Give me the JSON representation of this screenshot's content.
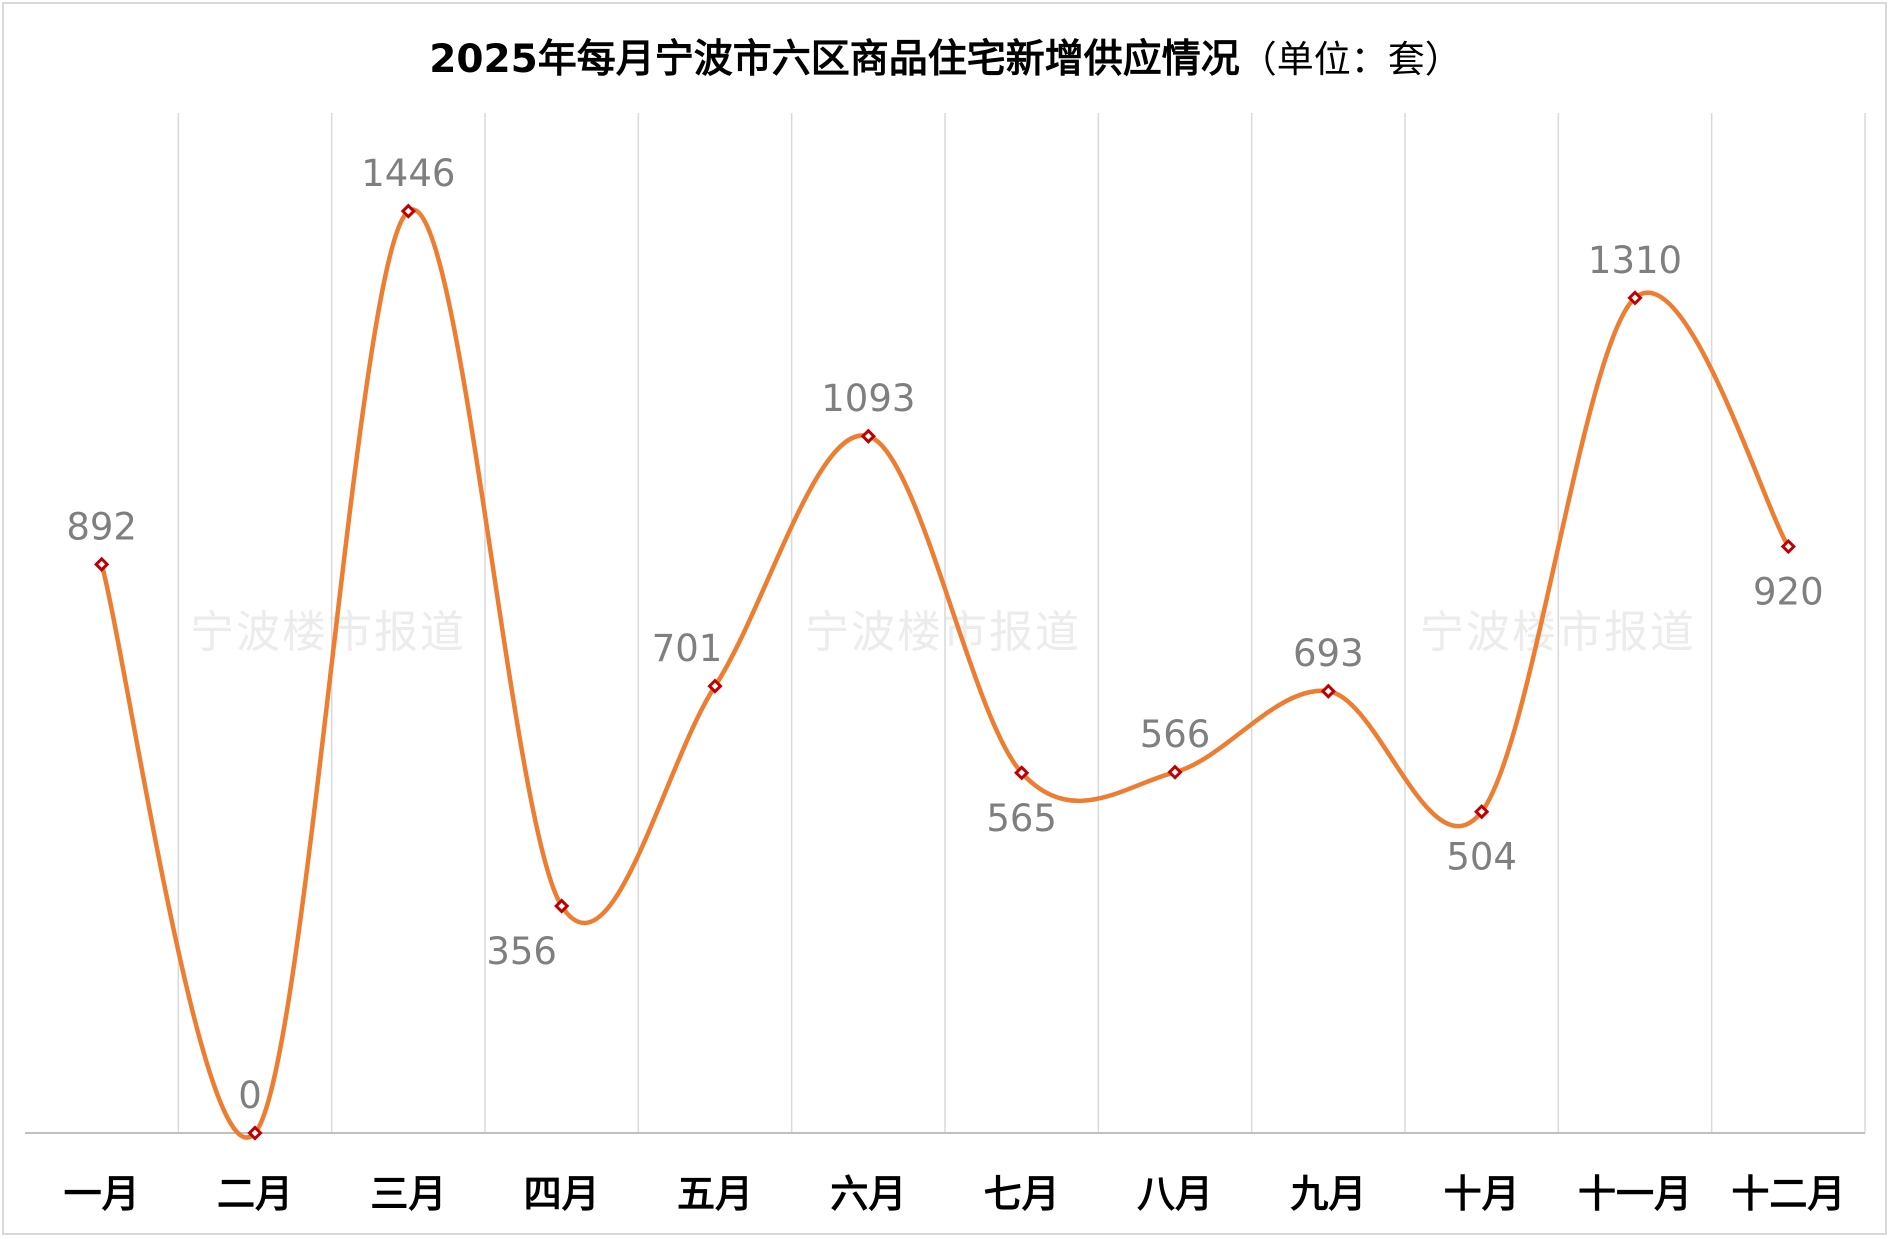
{
  "chart_data": {
    "type": "line",
    "title": "2025年每月宁波市六区商品住宅新增供应情况",
    "subtitle": "（单位：套）",
    "categories": [
      "一月",
      "二月",
      "三月",
      "四月",
      "五月",
      "六月",
      "七月",
      "八月",
      "九月",
      "十月",
      "十一月",
      "十二月"
    ],
    "series": [
      {
        "values": [
          892,
          0,
          1446,
          356,
          701,
          1093,
          565,
          566,
          693,
          504,
          1310,
          920
        ]
      }
    ],
    "xlabel": "",
    "ylabel": "",
    "ylim": [
      0,
      1600
    ],
    "smooth": true,
    "grid": "vertical",
    "legend": "none",
    "data_labels": true,
    "colors": {
      "line": "#ed7d31",
      "marker_stroke": "#c00000",
      "marker_fill": "#ffffff",
      "data_label": "#7f7f7f",
      "grid": "#d9d9d9",
      "axis": "#bfbfbf",
      "category_label": "#000000"
    }
  },
  "watermark": {
    "text": "宁波楼市报道",
    "count": 3
  }
}
